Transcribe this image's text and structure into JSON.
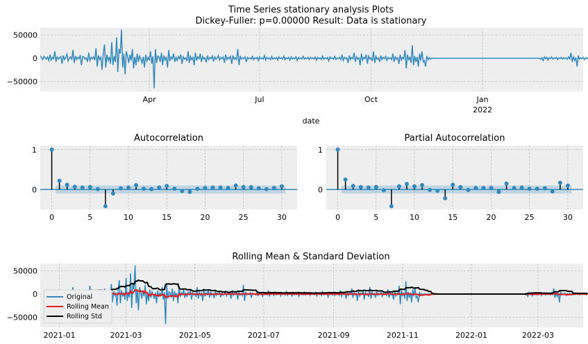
{
  "chart_data": [
    {
      "type": "line",
      "title": "Time Series stationary analysis Plots",
      "subtitle": "Dickey-Fuller: p=0.00000 Result: Data is stationary",
      "xlabel": "date",
      "ylabel": "",
      "ylim": [
        -72000,
        66000
      ],
      "xlim": [
        "2021-01-01",
        "2022-03-25"
      ],
      "grid": true,
      "yticks": [
        50000,
        0,
        -50000
      ],
      "ytick_labels": [
        "50000",
        "0",
        "−50000"
      ],
      "xticks": [
        "2021-04-01",
        "2021-07-01",
        "2021-10-01",
        "2022-01-01"
      ],
      "xtick_labels": [
        "Apr",
        "Jul",
        "Oct",
        "Jan"
      ],
      "xtick_sublabel": "2022",
      "series": [
        {
          "values_note": "daily differenced series",
          "x_start": "2021-01-01",
          "step_days": 1,
          "values": [
            5000,
            2000,
            -3000,
            4000,
            1000,
            -2000,
            3000,
            -5000,
            8000,
            -4000,
            2000,
            -1000,
            15000,
            -8000,
            3000,
            -2000,
            1000,
            4000,
            -12000,
            6000,
            -3000,
            2000,
            9000,
            -6000,
            1000,
            3000,
            -2000,
            18000,
            -10000,
            5000,
            -3000,
            2000,
            -1000,
            7000,
            -15000,
            4000,
            3000,
            -2000,
            1000,
            -8000,
            12000,
            -5000,
            2000,
            -1000,
            3000,
            -4000,
            22000,
            -18000,
            6000,
            -3000,
            2000,
            -25000,
            10000,
            30000,
            -20000,
            8000,
            -5000,
            3000,
            -12000,
            35000,
            -15000,
            5000,
            -8000,
            45000,
            -30000,
            20000,
            10000,
            62000,
            -20000,
            10000,
            -35000,
            15000,
            5000,
            -10000,
            8000,
            -5000,
            20000,
            -22000,
            3000,
            -15000,
            10000,
            -8000,
            5000,
            -2000,
            -10000,
            3000,
            -20000,
            8000,
            -6000,
            2000,
            -5000,
            15000,
            -12000,
            4000,
            -65000,
            20000,
            -10000,
            5000,
            3000,
            -8000,
            12000,
            -15000,
            6000,
            -4000,
            2000,
            -20000,
            18000,
            -6000,
            3000,
            -1000,
            10000,
            -8000,
            2000,
            -5000,
            4000,
            -1000,
            8000,
            -12000,
            3000,
            -2000,
            1000,
            -6000,
            15000,
            -10000,
            4000,
            -3000,
            2000,
            -15000,
            12000,
            -5000,
            3000,
            -1000,
            10000,
            -8000,
            4000,
            -2000,
            1000,
            -9000,
            6000,
            -3000,
            2000,
            -1000,
            5000,
            -7000,
            3000,
            -2000,
            1000,
            6000,
            -4000,
            2000,
            -1000,
            3000,
            -10000,
            8000,
            -3000,
            2000,
            -1000,
            4000,
            -12000,
            6000,
            -2000,
            1000,
            -3000,
            20000,
            -15000,
            5000,
            -2000,
            1000,
            -1000,
            3000,
            -8000,
            2000,
            -1000,
            1000,
            -2000,
            4000,
            -3000,
            1000,
            -1000,
            2000,
            -5000,
            3000,
            -1000,
            1000,
            -2000,
            6000,
            -4000,
            2000,
            -1000,
            1000,
            -3000,
            4000,
            -2000,
            1000,
            -1000,
            2000,
            -4000,
            3000,
            -1000,
            1000,
            -2000,
            5000,
            -3000,
            1000,
            -1000,
            2000,
            -4000,
            3000,
            -2000,
            1000,
            -1000,
            3000,
            -5000,
            2000,
            -1000,
            1000,
            -2000,
            4000,
            -2000,
            1000,
            -1000,
            2000,
            -3000,
            2000,
            -1000,
            1000,
            -2000,
            3000,
            -4000,
            2000,
            -1000,
            1000,
            -3000,
            5000,
            -2000,
            1000,
            -1000,
            2000,
            -6000,
            3000,
            -1000,
            1000,
            -2000,
            4000,
            -3000,
            1000,
            -1000,
            2000,
            -3000,
            8000,
            -5000,
            2000,
            -1000,
            1000,
            -10000,
            6000,
            -3000,
            2000,
            -1000,
            12000,
            -8000,
            3000,
            -2000,
            1000,
            -15000,
            10000,
            -4000,
            2000,
            -1000,
            8000,
            -12000,
            5000,
            -2000,
            1000,
            -6000,
            15000,
            -10000,
            4000,
            -2000,
            1000,
            -8000,
            6000,
            -3000,
            2000,
            -1000,
            4000,
            -5000,
            2000,
            -1000,
            1000,
            -3000,
            10000,
            -8000,
            3000,
            -2000,
            1000,
            -12000,
            8000,
            -4000,
            2000,
            -1000,
            18000,
            -22000,
            8000,
            -3000,
            2000,
            -10000,
            28000,
            -15000,
            5000,
            -8000,
            3000,
            -18000,
            10000,
            -5000,
            15000,
            -8000,
            -5000,
            -18000,
            5000,
            -3000,
            1000,
            -2000,
            500,
            -300,
            200,
            0,
            0,
            0,
            0,
            0,
            0,
            0,
            0,
            0,
            0,
            0,
            0,
            0,
            0,
            0,
            0,
            0,
            0,
            0,
            0,
            0,
            0,
            0,
            0,
            0,
            0,
            0,
            0,
            0,
            0,
            0,
            0,
            0,
            0,
            0,
            0,
            0,
            0,
            0,
            0,
            0,
            0,
            0,
            0,
            0,
            0,
            0,
            0,
            0,
            0,
            0,
            0,
            0,
            0,
            0,
            0,
            0,
            0,
            0,
            0,
            0,
            0,
            0,
            0,
            0,
            0,
            0,
            0,
            0,
            0,
            0,
            0,
            0,
            0,
            0,
            0,
            0,
            0,
            0,
            0,
            0,
            0,
            0,
            0,
            0,
            0,
            0,
            -2000,
            1000,
            -5000,
            3000,
            -1000,
            2000,
            -4000,
            1000,
            -1000,
            3000,
            -2000,
            1000,
            -1000,
            2000,
            -3000,
            1000,
            -1000,
            2000,
            -2000,
            1000,
            -1000,
            1000,
            -2000,
            3000,
            -1000,
            12000,
            -8000,
            3000,
            -5000,
            2000,
            -18000,
            6000,
            -2000,
            1000,
            -1000,
            2000,
            -3000,
            1000,
            -1000,
            2000,
            -1000,
            1000,
            -2000,
            1000,
            -1000,
            2000,
            -1000,
            1000,
            -2000,
            1000,
            -1000,
            2000,
            -1000,
            1000,
            -2000,
            1000
          ]
        }
      ]
    },
    {
      "type": "stem",
      "title": "Autocorrelation",
      "xlim": [
        -1.5,
        32
      ],
      "ylim": [
        -0.5,
        1.1
      ],
      "xticks": [
        0,
        5,
        10,
        15,
        20,
        25,
        30
      ],
      "yticks": [
        1,
        0
      ],
      "lags": [
        0,
        1,
        2,
        3,
        4,
        5,
        6,
        7,
        8,
        9,
        10,
        11,
        12,
        13,
        14,
        15,
        16,
        17,
        18,
        19,
        20,
        21,
        22,
        23,
        24,
        25,
        26,
        27,
        28,
        29,
        30
      ],
      "values": [
        1.0,
        0.22,
        0.12,
        0.07,
        0.05,
        0.06,
        0.01,
        -0.42,
        -0.1,
        0.03,
        0.05,
        0.11,
        0.02,
        0.01,
        0.05,
        0.09,
        0.02,
        -0.04,
        -0.06,
        0.02,
        0.04,
        0.05,
        0.05,
        0.04,
        0.1,
        0.06,
        0.06,
        0.03,
        0.01,
        0.04,
        0.08
      ],
      "confidence_band": 0.1
    },
    {
      "type": "stem",
      "title": "Partial Autocorrelation",
      "xlim": [
        -1.5,
        32
      ],
      "ylim": [
        -0.5,
        1.1
      ],
      "xticks": [
        0,
        5,
        10,
        15,
        20,
        25,
        30
      ],
      "yticks": [
        1,
        0
      ],
      "lags": [
        0,
        1,
        2,
        3,
        4,
        5,
        6,
        7,
        8,
        9,
        10,
        11,
        12,
        13,
        14,
        15,
        16,
        17,
        18,
        19,
        20,
        21,
        22,
        23,
        24,
        25,
        26,
        27,
        28,
        29,
        30
      ],
      "values": [
        1.0,
        0.25,
        0.09,
        0.06,
        0.05,
        0.06,
        -0.02,
        -0.42,
        0.08,
        0.14,
        0.08,
        0.11,
        -0.01,
        -0.03,
        -0.22,
        0.12,
        0.06,
        -0.01,
        0.04,
        0.04,
        0.04,
        -0.06,
        0.15,
        0.04,
        0.05,
        0.02,
        0.02,
        0.03,
        -0.05,
        0.17,
        0.1
      ],
      "confidence_band": 0.1
    },
    {
      "type": "line",
      "title": "Rolling Mean & Standard Deviation",
      "ylim": [
        -72000,
        66000
      ],
      "yticks": [
        50000,
        0,
        -50000
      ],
      "ytick_labels": [
        "50000",
        "0",
        "−50000"
      ],
      "xticks": [
        "2021-01",
        "2021-03",
        "2021-05",
        "2021-07",
        "2021-09",
        "2021-11",
        "2022-01",
        "2022-03"
      ],
      "legend": [
        "Original",
        "Rolling Mean",
        "Rolling Std"
      ],
      "legend_position": "lower-left",
      "colors": {
        "Original": "#348abd",
        "Rolling Mean": "#e41a1c",
        "Rolling Std": "#000000"
      }
    }
  ],
  "colors": {
    "line": "#348abd",
    "bg": "#eeeeee",
    "grid": "#bcbcbc",
    "stem": "#000000",
    "band": "#348abd"
  }
}
